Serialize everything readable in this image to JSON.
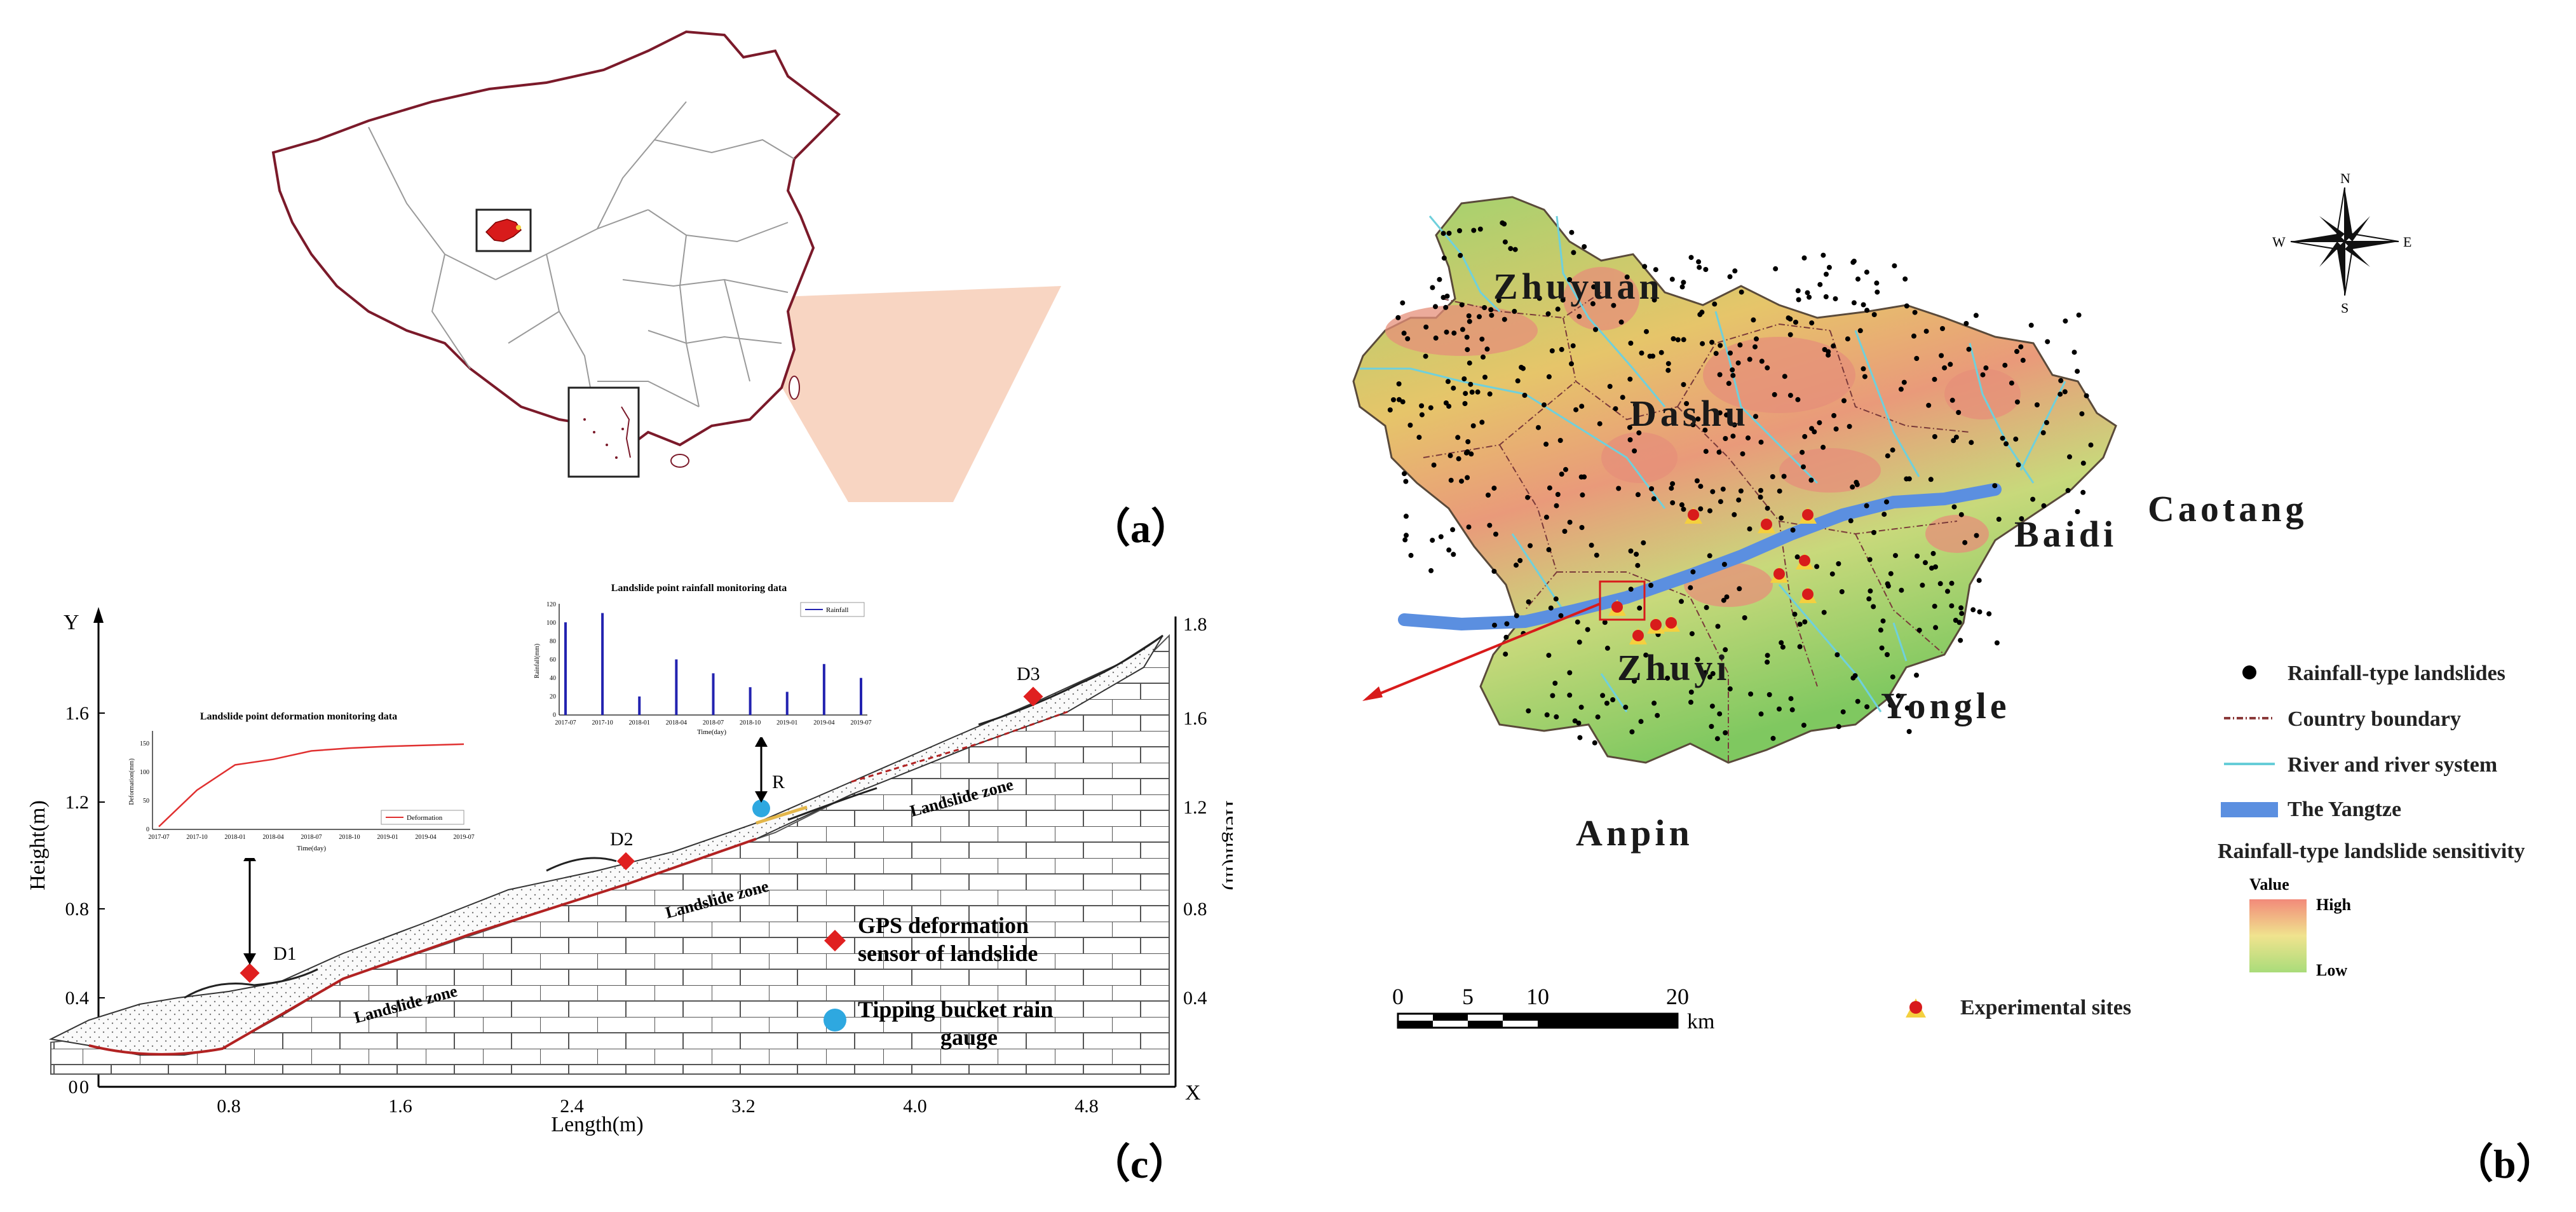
{
  "panels": {
    "a": {
      "label": "（a）"
    },
    "b": {
      "label": "（b）"
    },
    "c": {
      "label": "（c）"
    }
  },
  "map_b": {
    "towns": [
      "Zhuyuan",
      "Dashu",
      "Baidi",
      "Caotang",
      "Zhuyi",
      "Yongle",
      "Anpin"
    ],
    "compass": {
      "n": "N",
      "s": "S",
      "e": "E",
      "w": "W"
    },
    "legend": {
      "rainfall_landslides": "Rainfall-type landslides",
      "country_boundary": "Country boundary",
      "river_system": "River and river system",
      "yangtze": "The Yangtze",
      "sensitivity_title": "Rainfall-type landslide sensitivity",
      "value_label": "Value",
      "high": "High",
      "low": "Low",
      "experimental_sites": "Experimental sites"
    },
    "scale": {
      "ticks": [
        "0",
        "5",
        "10",
        "20"
      ],
      "unit": "km"
    },
    "colors": {
      "yangtze": "#5b8fe0",
      "river": "#66cdd8",
      "boundary": "#8b3a3a",
      "landslide": "#000000",
      "high": "#f28a7a",
      "low": "#a9dc7a"
    }
  },
  "section_c": {
    "y_axis_letter": "Y",
    "x_axis_letter": "X",
    "xlabel": "Length(m)",
    "ylabel_left": "Height(m)",
    "ylabel_right": "Height(m)",
    "x_ticks": [
      "0",
      "0.8",
      "1.6",
      "2.4",
      "3.2",
      "4.0",
      "4.8"
    ],
    "y_ticks_left": [
      "0",
      "0.4",
      "0.8",
      "1.2",
      "1.6"
    ],
    "y_ticks_right": [
      "0.4",
      "0.8",
      "1.2",
      "1.6",
      "1.8"
    ],
    "points": {
      "d1": "D1",
      "d2": "D2",
      "d3": "D3",
      "r": "R"
    },
    "zone_label": "Landslide zone",
    "legend": {
      "gps": "GPS deformation sensor of landslide",
      "rain_gauge": "Tipping bucket rain gauge"
    }
  },
  "chart_data": [
    {
      "type": "line",
      "title": "Landslide point deformation monitoring data",
      "xlabel": "Time(day)",
      "ylabel": "Deformation(mm)",
      "series": [
        {
          "name": "Deformation",
          "x": [
            "2017-07",
            "2017-10",
            "2018-01",
            "2018-04",
            "2018-07",
            "2018-10",
            "2019-01",
            "2019-04",
            "2019-07"
          ],
          "values": [
            5,
            70,
            115,
            125,
            140,
            145,
            148,
            150,
            152
          ]
        }
      ],
      "y_ticks": [
        "0",
        "50",
        "100",
        "150"
      ],
      "ylim": [
        0,
        170
      ]
    },
    {
      "type": "bar",
      "title": "Landslide point rainfall monitoring data",
      "xlabel": "Time(day)",
      "ylabel": "Rainfall(mm)",
      "series": [
        {
          "name": "Rainfall",
          "x": [
            "2017-07",
            "2017-10",
            "2018-01",
            "2018-04",
            "2018-07",
            "2018-10",
            "2019-01",
            "2019-04",
            "2019-07"
          ],
          "values": [
            100,
            110,
            20,
            60,
            45,
            30,
            25,
            55,
            40
          ]
        }
      ],
      "y_ticks": [
        "0",
        "20",
        "40",
        "60",
        "80",
        "100",
        "120"
      ],
      "ylim": [
        0,
        120
      ]
    }
  ]
}
